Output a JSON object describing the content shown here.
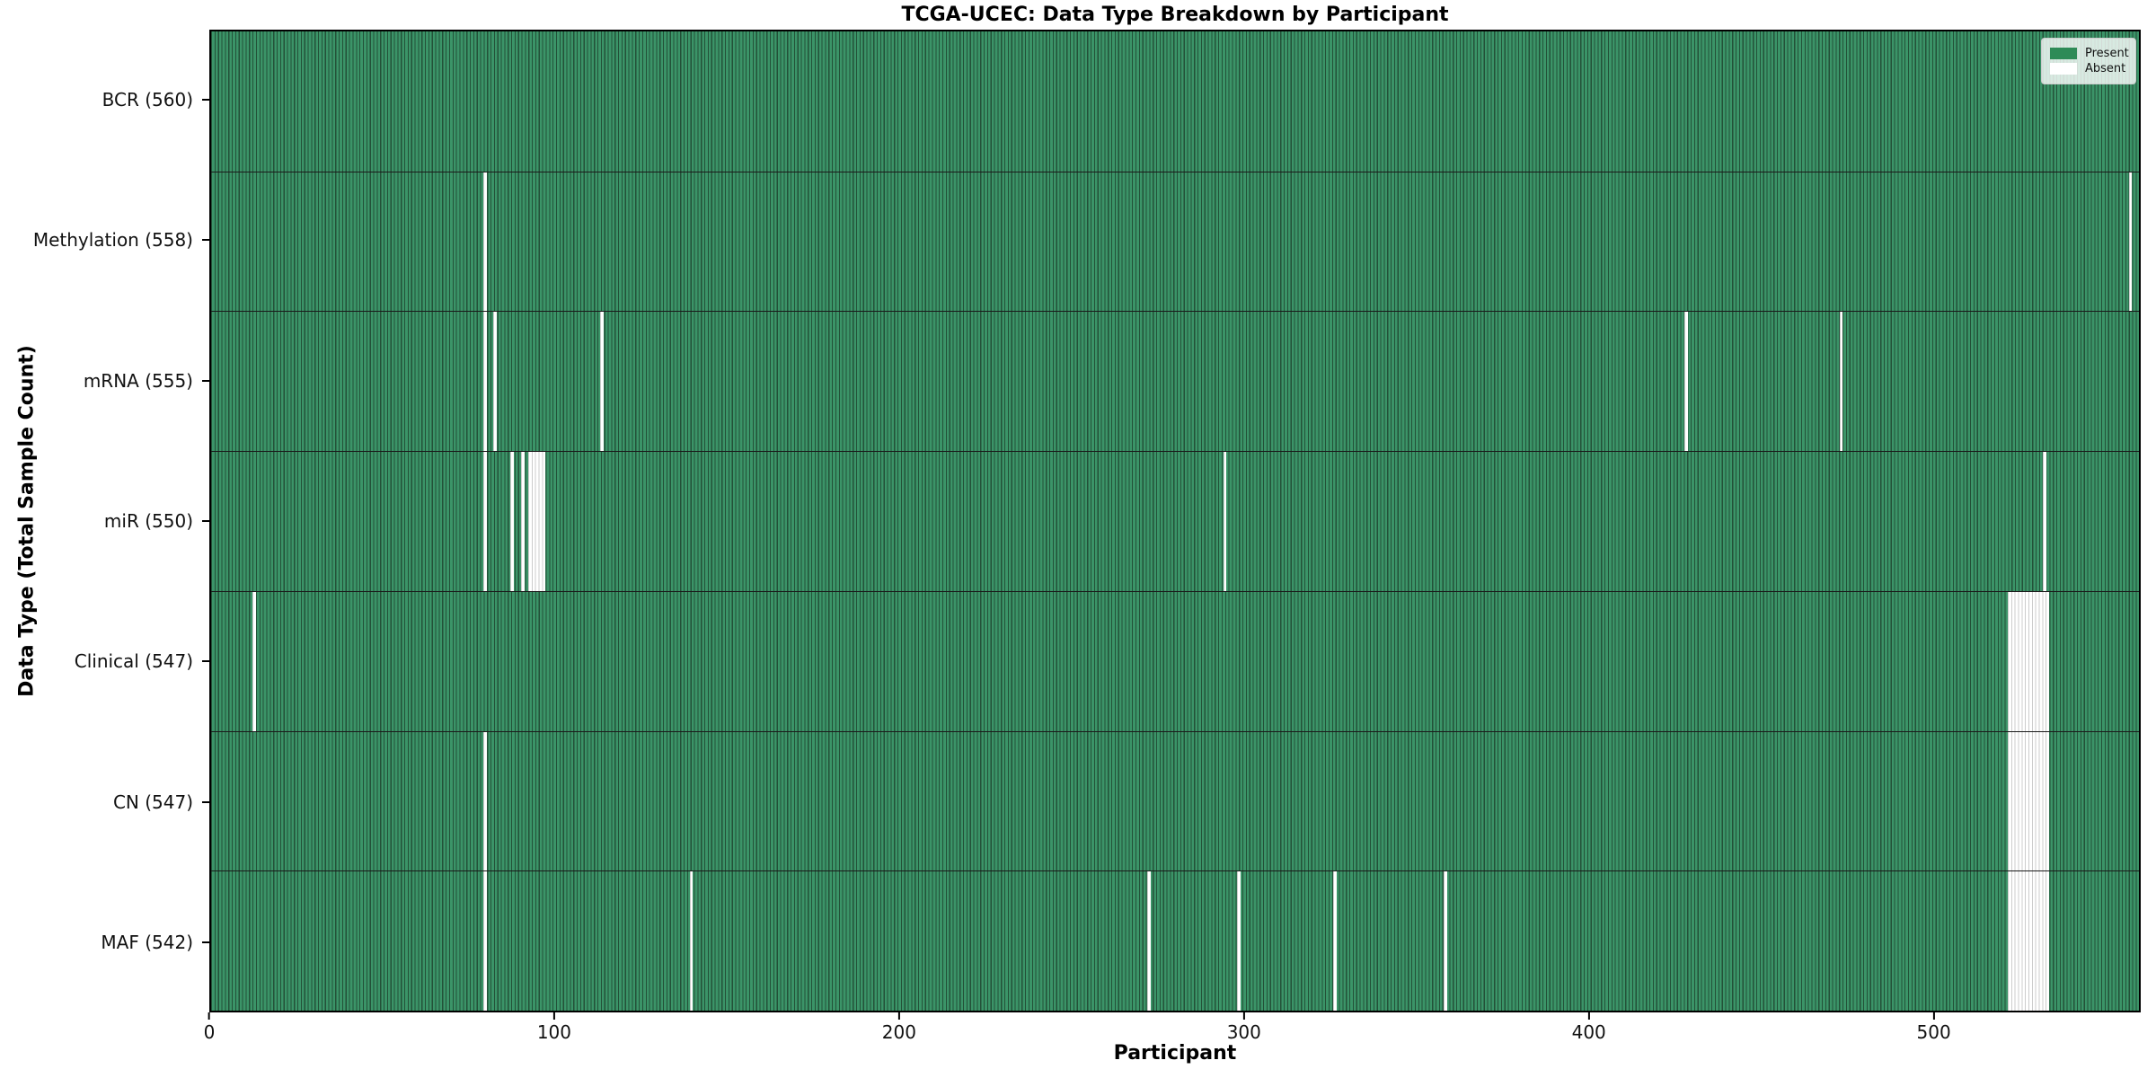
{
  "title": "TCGA-UCEC: Data Type Breakdown by Participant",
  "colors": {
    "present": "#3b9468",
    "present_edge": "#235138",
    "absent": "#ffffff",
    "absent_edge": "#cccccc",
    "legend_present_swatch": "#2e8b57",
    "legend_absent_swatch": "#ffffff"
  },
  "chart_data": {
    "type": "heatmap",
    "title": "TCGA-UCEC: Data Type Breakdown by Participant",
    "xlabel": "Participant",
    "ylabel": "Data Type (Total Sample Count)",
    "x_ticks": [
      0,
      100,
      200,
      300,
      400,
      500
    ],
    "xlim": [
      0,
      560
    ],
    "n_participants": 560,
    "grid": false,
    "legend_position": "upper right",
    "legend_items": [
      {
        "label": "Present",
        "color": "#2e8b57"
      },
      {
        "label": "Absent",
        "color": "#ffffff"
      }
    ],
    "rows": [
      {
        "label": "BCR (560)",
        "data_type": "BCR",
        "present_count": 560,
        "absent_participants": []
      },
      {
        "label": "Methylation (558)",
        "data_type": "Methylation",
        "present_count": 558,
        "absent_participants": [
          79,
          557
        ]
      },
      {
        "label": "mRNA (555)",
        "data_type": "mRNA",
        "present_count": 555,
        "absent_participants": [
          79,
          82,
          113,
          428,
          473
        ]
      },
      {
        "label": "miR (550)",
        "data_type": "miR",
        "present_count": 550,
        "absent_participants": [
          79,
          87,
          90,
          92,
          93,
          94,
          95,
          96,
          294,
          532
        ]
      },
      {
        "label": "Clinical (547)",
        "data_type": "Clinical",
        "present_count": 547,
        "absent_participants": [
          12,
          522,
          523,
          524,
          525,
          526,
          527,
          528,
          529,
          530,
          531,
          532,
          533
        ]
      },
      {
        "label": "CN (547)",
        "data_type": "CN",
        "present_count": 547,
        "absent_participants": [
          79,
          522,
          523,
          524,
          525,
          526,
          527,
          528,
          529,
          530,
          531,
          532,
          533
        ]
      },
      {
        "label": "MAF (542)",
        "data_type": "MAF",
        "present_count": 542,
        "absent_participants": [
          79,
          139,
          272,
          298,
          326,
          358,
          522,
          523,
          524,
          525,
          526,
          527,
          528,
          529,
          530,
          531,
          532,
          533
        ]
      }
    ]
  }
}
